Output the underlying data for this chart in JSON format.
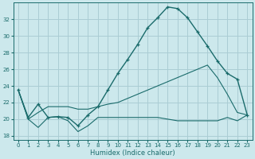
{
  "xlabel": "Humidex (Indice chaleur)",
  "background_color": "#cce8ec",
  "grid_color": "#aacdd4",
  "line_color": "#1a6b6b",
  "xlim": [
    -0.5,
    23.5
  ],
  "ylim": [
    17.5,
    34.0
  ],
  "yticks": [
    18,
    20,
    22,
    24,
    26,
    28,
    30,
    32
  ],
  "xticks": [
    0,
    1,
    2,
    3,
    4,
    5,
    6,
    7,
    8,
    9,
    10,
    11,
    12,
    13,
    14,
    15,
    16,
    17,
    18,
    19,
    20,
    21,
    22,
    23
  ],
  "s1_x": [
    0,
    1,
    2,
    3,
    4,
    5,
    6,
    7,
    8,
    9,
    10,
    11,
    12,
    13,
    14,
    15,
    16,
    17,
    18,
    19,
    20,
    21,
    22,
    23
  ],
  "s1_y": [
    23.5,
    20.2,
    21.8,
    20.2,
    20.3,
    20.2,
    19.2,
    20.5,
    21.5,
    23.5,
    25.5,
    27.2,
    29.0,
    31.0,
    32.2,
    33.5,
    33.3,
    32.2,
    30.5,
    28.8,
    27.0,
    25.5,
    24.8,
    20.5
  ],
  "s2_x": [
    0,
    1,
    2,
    3,
    4,
    5,
    6,
    7,
    8,
    9,
    10,
    11,
    12,
    13,
    14,
    15,
    16,
    17,
    18,
    19,
    20,
    21,
    22,
    23
  ],
  "s2_y": [
    23.5,
    20.0,
    19.0,
    20.2,
    20.3,
    19.8,
    18.5,
    19.2,
    20.2,
    20.2,
    20.2,
    20.2,
    20.2,
    20.2,
    20.2,
    20.0,
    19.8,
    19.8,
    19.8,
    19.8,
    19.8,
    20.2,
    19.8,
    20.5
  ],
  "s3_x": [
    0,
    1,
    2,
    3,
    4,
    5,
    6,
    7,
    8,
    9,
    10,
    11,
    12,
    13,
    14,
    15,
    16,
    17,
    18,
    19,
    20,
    21,
    22,
    23
  ],
  "s3_y": [
    23.5,
    20.0,
    20.8,
    21.5,
    21.5,
    21.5,
    21.2,
    21.2,
    21.5,
    21.8,
    22.0,
    22.5,
    23.0,
    23.5,
    24.0,
    24.5,
    25.0,
    25.5,
    26.0,
    26.5,
    25.0,
    23.0,
    20.8,
    20.5
  ]
}
